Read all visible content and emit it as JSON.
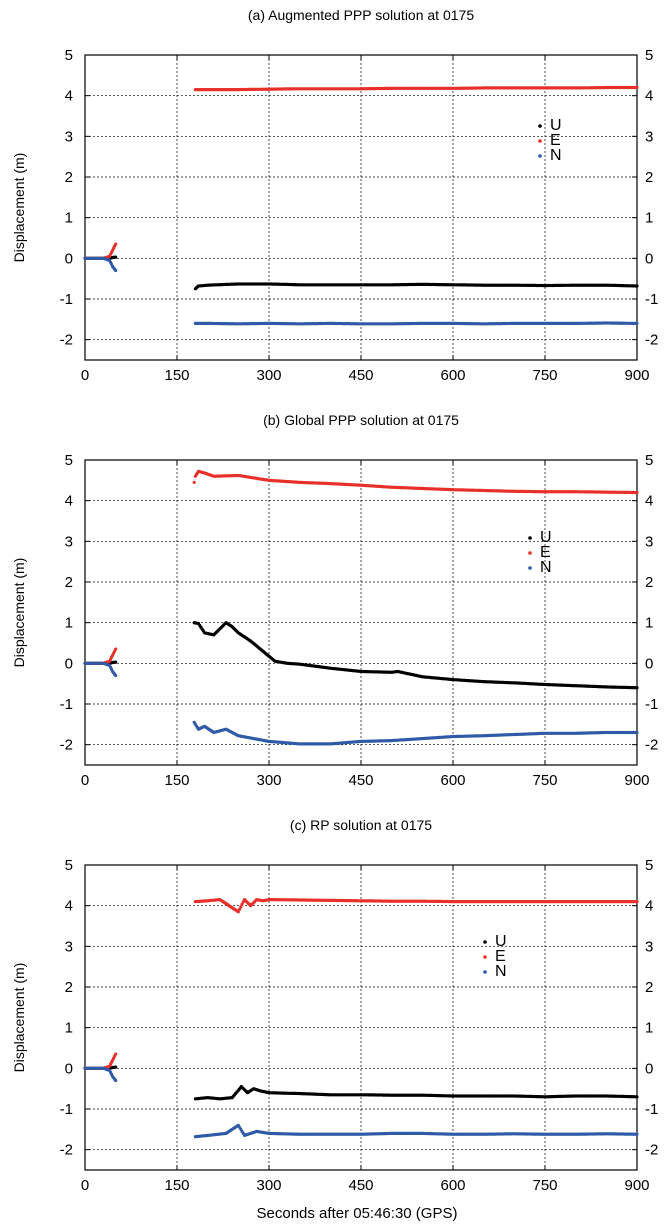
{
  "figure": {
    "xlabel": "Seconds after 05:46:30 (GPS)"
  },
  "colors": {
    "U": "#000000",
    "E": "#e8302a",
    "N": "#2e5aa8",
    "grid": "#000000"
  },
  "chart_data": [
    {
      "type": "scatter",
      "title": "(a) Augmented PPP solution at 0175",
      "ylabel": "Displacement (m)",
      "xlabel": "",
      "xlim": [
        0,
        900
      ],
      "ylim": [
        -2.5,
        5
      ],
      "xticks": [
        0,
        150,
        300,
        450,
        600,
        750,
        900
      ],
      "yticks": [
        -2,
        -1,
        0,
        1,
        2,
        3,
        4,
        5
      ],
      "grid": true,
      "legend": {
        "position": "right",
        "entries": [
          "U",
          "E",
          "N"
        ]
      },
      "series": [
        {
          "name": "U",
          "x": [
            0,
            20,
            30,
            40,
            45,
            50,
            180,
            185,
            200,
            250,
            300,
            350,
            400,
            450,
            500,
            550,
            600,
            650,
            700,
            750,
            800,
            850,
            900
          ],
          "y": [
            0,
            0,
            0,
            0,
            0.02,
            0.03,
            -0.75,
            -0.68,
            -0.66,
            -0.63,
            -0.63,
            -0.65,
            -0.65,
            -0.65,
            -0.65,
            -0.64,
            -0.65,
            -0.66,
            -0.66,
            -0.67,
            -0.66,
            -0.66,
            -0.68
          ]
        },
        {
          "name": "E",
          "x": [
            0,
            20,
            30,
            40,
            45,
            50,
            180,
            200,
            250,
            300,
            350,
            400,
            450,
            500,
            550,
            600,
            650,
            700,
            750,
            800,
            850,
            900
          ],
          "y": [
            0,
            0,
            0,
            0.05,
            0.2,
            0.35,
            4.15,
            4.15,
            4.15,
            4.16,
            4.17,
            4.17,
            4.17,
            4.18,
            4.18,
            4.18,
            4.19,
            4.19,
            4.19,
            4.19,
            4.2,
            4.2
          ]
        },
        {
          "name": "N",
          "x": [
            0,
            20,
            30,
            40,
            45,
            50,
            180,
            200,
            250,
            300,
            350,
            400,
            450,
            500,
            550,
            600,
            650,
            700,
            750,
            800,
            850,
            900
          ],
          "y": [
            0,
            0,
            0,
            -0.05,
            -0.2,
            -0.3,
            -1.6,
            -1.6,
            -1.61,
            -1.6,
            -1.61,
            -1.6,
            -1.61,
            -1.61,
            -1.6,
            -1.6,
            -1.61,
            -1.6,
            -1.6,
            -1.6,
            -1.59,
            -1.6
          ]
        }
      ]
    },
    {
      "type": "scatter",
      "title": "(b) Global PPP solution at 0175",
      "ylabel": "Displacement (m)",
      "xlabel": "",
      "xlim": [
        0,
        900
      ],
      "ylim": [
        -2.5,
        5
      ],
      "xticks": [
        0,
        150,
        300,
        450,
        600,
        750,
        900
      ],
      "yticks": [
        -2,
        -1,
        0,
        1,
        2,
        3,
        4,
        5
      ],
      "grid": true,
      "legend": {
        "position": "right",
        "entries": [
          "U",
          "E",
          "N"
        ]
      },
      "series": [
        {
          "name": "U",
          "x": [
            0,
            20,
            30,
            40,
            45,
            50,
            178,
            185,
            195,
            210,
            220,
            230,
            240,
            250,
            270,
            290,
            310,
            330,
            350,
            400,
            450,
            500,
            510,
            550,
            600,
            650,
            700,
            750,
            800,
            850,
            900
          ],
          "y": [
            0,
            0,
            0,
            0,
            0.02,
            0.03,
            1.0,
            0.98,
            0.75,
            0.7,
            0.85,
            1.0,
            0.9,
            0.75,
            0.55,
            0.3,
            0.05,
            0.0,
            -0.02,
            -0.12,
            -0.2,
            -0.22,
            -0.2,
            -0.33,
            -0.4,
            -0.45,
            -0.48,
            -0.52,
            -0.55,
            -0.58,
            -0.6
          ]
        },
        {
          "name": "E",
          "x": [
            0,
            20,
            30,
            40,
            45,
            50,
            178,
            180,
            185,
            195,
            210,
            250,
            300,
            350,
            400,
            450,
            500,
            550,
            600,
            650,
            700,
            750,
            800,
            850,
            900
          ],
          "y": [
            0,
            0,
            0,
            0.05,
            0.2,
            0.35,
            4.45,
            4.6,
            4.72,
            4.68,
            4.6,
            4.62,
            4.5,
            4.45,
            4.42,
            4.38,
            4.33,
            4.3,
            4.27,
            4.25,
            4.23,
            4.22,
            4.22,
            4.21,
            4.2
          ]
        },
        {
          "name": "N",
          "x": [
            0,
            20,
            30,
            40,
            45,
            50,
            178,
            185,
            195,
            210,
            230,
            250,
            300,
            350,
            400,
            450,
            500,
            550,
            600,
            650,
            700,
            750,
            800,
            850,
            900
          ],
          "y": [
            0,
            0,
            0,
            -0.05,
            -0.2,
            -0.3,
            -1.45,
            -1.62,
            -1.55,
            -1.7,
            -1.62,
            -1.78,
            -1.92,
            -1.98,
            -1.98,
            -1.92,
            -1.9,
            -1.85,
            -1.8,
            -1.78,
            -1.75,
            -1.72,
            -1.72,
            -1.7,
            -1.7
          ]
        }
      ]
    },
    {
      "type": "scatter",
      "title": "(c) RP solution at 0175",
      "ylabel": "Displacement (m)",
      "xlabel": "Seconds after 05:46:30 (GPS)",
      "xlim": [
        0,
        900
      ],
      "ylim": [
        -2.5,
        5
      ],
      "xticks": [
        0,
        150,
        300,
        450,
        600,
        750,
        900
      ],
      "yticks": [
        -2,
        -1,
        0,
        1,
        2,
        3,
        4,
        5
      ],
      "grid": true,
      "legend": {
        "position": "right",
        "entries": [
          "U",
          "E",
          "N"
        ]
      },
      "series": [
        {
          "name": "U",
          "x": [
            0,
            20,
            30,
            40,
            45,
            50,
            180,
            200,
            220,
            240,
            255,
            265,
            275,
            285,
            300,
            350,
            400,
            450,
            500,
            550,
            600,
            650,
            700,
            750,
            800,
            850,
            900
          ],
          "y": [
            0,
            0,
            0,
            0,
            0.02,
            0.03,
            -0.75,
            -0.72,
            -0.75,
            -0.72,
            -0.45,
            -0.6,
            -0.5,
            -0.55,
            -0.6,
            -0.62,
            -0.65,
            -0.65,
            -0.66,
            -0.66,
            -0.68,
            -0.68,
            -0.68,
            -0.7,
            -0.68,
            -0.68,
            -0.7
          ]
        },
        {
          "name": "E",
          "x": [
            0,
            20,
            30,
            40,
            45,
            50,
            180,
            200,
            220,
            235,
            250,
            260,
            270,
            280,
            290,
            300,
            350,
            400,
            450,
            500,
            550,
            600,
            650,
            700,
            750,
            800,
            850,
            900
          ],
          "y": [
            0,
            0,
            0,
            0.05,
            0.2,
            0.35,
            4.1,
            4.12,
            4.15,
            4.0,
            3.85,
            4.15,
            4.0,
            4.15,
            4.12,
            4.15,
            4.14,
            4.13,
            4.12,
            4.11,
            4.11,
            4.1,
            4.1,
            4.1,
            4.1,
            4.1,
            4.1,
            4.1
          ]
        },
        {
          "name": "N",
          "x": [
            0,
            20,
            30,
            40,
            45,
            50,
            180,
            200,
            230,
            250,
            260,
            270,
            280,
            300,
            350,
            400,
            450,
            500,
            550,
            600,
            650,
            700,
            750,
            800,
            850,
            900
          ],
          "y": [
            0,
            0,
            0,
            -0.05,
            -0.2,
            -0.3,
            -1.68,
            -1.65,
            -1.6,
            -1.4,
            -1.65,
            -1.6,
            -1.55,
            -1.6,
            -1.62,
            -1.62,
            -1.62,
            -1.6,
            -1.6,
            -1.62,
            -1.62,
            -1.61,
            -1.62,
            -1.62,
            -1.61,
            -1.62
          ]
        }
      ]
    }
  ]
}
